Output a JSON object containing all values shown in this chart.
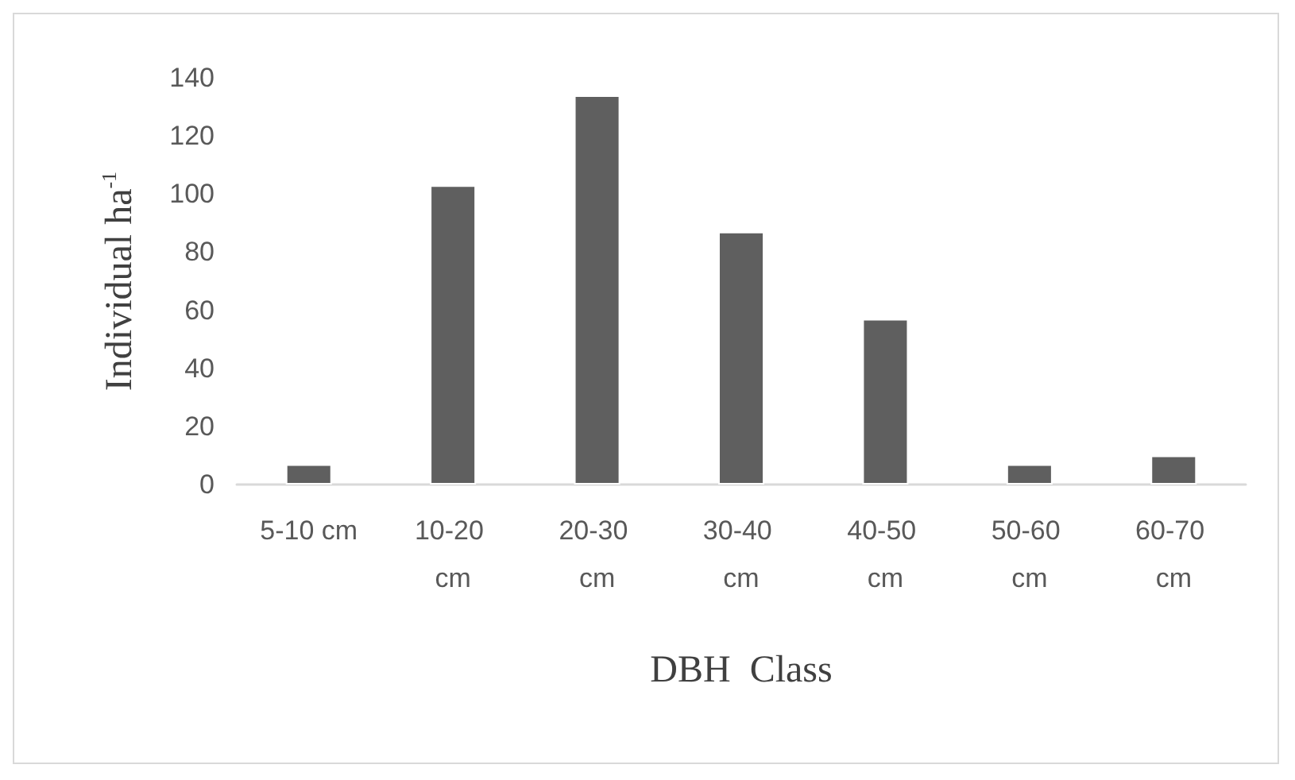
{
  "chart_data": {
    "type": "bar",
    "xlabel": "DBH  Class",
    "ylabel": "Individual ha$^{-1}$",
    "categories": [
      "5-10 cm",
      "10-20 cm",
      "20-30 cm",
      "30-40 cm",
      "40-50 cm",
      "50-60 cm",
      "60-70 cm"
    ],
    "values": [
      7,
      103,
      134,
      87,
      57,
      7,
      10
    ],
    "color": "#5f5f5f",
    "ylim": [
      0,
      140
    ],
    "yticks": [
      0,
      20,
      40,
      60,
      80,
      100,
      120,
      140
    ]
  }
}
